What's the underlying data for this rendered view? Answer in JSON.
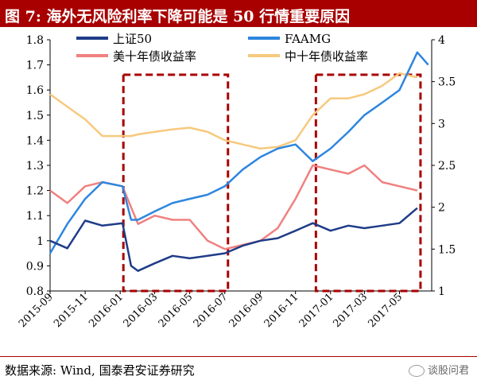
{
  "title": "图 7:  海外无风险利率下降可能是 50 行情重要原因",
  "source": "数据来源:  Wind, 国泰君安证券研究",
  "watermark": "谈股问君",
  "chart_data": {
    "type": "line",
    "x_start": "2015-09",
    "x_end": "2017-06",
    "x_ticks": [
      "2015-09",
      "2015-11",
      "2016-01",
      "2016-03",
      "2016-05",
      "2016-07",
      "2016-09",
      "2016-11",
      "2017-01",
      "2017-03",
      "2017-05"
    ],
    "y_left": {
      "lim": [
        0.8,
        1.8
      ],
      "ticks": [
        "0.8",
        "0.9",
        "1",
        "1.1",
        "1.2",
        "1.3",
        "1.4",
        "1.5",
        "1.6",
        "1.7",
        "1.8"
      ]
    },
    "y_right": {
      "lim": [
        1,
        4
      ],
      "ticks": [
        "1",
        "1.5",
        "2",
        "2.5",
        "3",
        "3.5",
        "4"
      ]
    },
    "legend_position": "top",
    "series": [
      {
        "name": "上证50",
        "axis": "left",
        "color": "#1f3c88",
        "points": [
          [
            "2015-09",
            1.0
          ],
          [
            "2015-10",
            0.97
          ],
          [
            "2015-11",
            1.08
          ],
          [
            "2015-12",
            1.06
          ],
          [
            "2016-01-05",
            1.07
          ],
          [
            "2016-01-20",
            0.9
          ],
          [
            "2016-02",
            0.88
          ],
          [
            "2016-03",
            0.91
          ],
          [
            "2016-04",
            0.94
          ],
          [
            "2016-05",
            0.93
          ],
          [
            "2016-06",
            0.94
          ],
          [
            "2016-07",
            0.95
          ],
          [
            "2016-08",
            0.98
          ],
          [
            "2016-09",
            1.0
          ],
          [
            "2016-10",
            1.01
          ],
          [
            "2016-11",
            1.04
          ],
          [
            "2016-12",
            1.07
          ],
          [
            "2017-01",
            1.04
          ],
          [
            "2017-02",
            1.06
          ],
          [
            "2017-03",
            1.05
          ],
          [
            "2017-04",
            1.06
          ],
          [
            "2017-05",
            1.07
          ],
          [
            "2017-06",
            1.13
          ]
        ]
      },
      {
        "name": "FAAMG",
        "axis": "right",
        "color": "#2e86de",
        "points": [
          [
            "2015-09",
            1.45
          ],
          [
            "2015-10",
            1.8
          ],
          [
            "2015-11",
            2.1
          ],
          [
            "2015-12",
            2.3
          ],
          [
            "2016-01-05",
            2.25
          ],
          [
            "2016-01-20",
            1.85
          ],
          [
            "2016-02",
            1.85
          ],
          [
            "2016-03",
            1.95
          ],
          [
            "2016-04",
            2.05
          ],
          [
            "2016-05",
            2.1
          ],
          [
            "2016-06",
            2.15
          ],
          [
            "2016-07",
            2.25
          ],
          [
            "2016-08",
            2.45
          ],
          [
            "2016-09",
            2.6
          ],
          [
            "2016-10",
            2.7
          ],
          [
            "2016-11",
            2.75
          ],
          [
            "2016-12",
            2.55
          ],
          [
            "2017-01",
            2.7
          ],
          [
            "2017-02",
            2.9
          ],
          [
            "2017-03",
            3.1
          ],
          [
            "2017-04",
            3.25
          ],
          [
            "2017-05",
            3.4
          ],
          [
            "2017-06",
            3.85
          ],
          [
            "2017-06-20",
            3.7
          ]
        ]
      },
      {
        "name": "美十年债收益率",
        "axis": "right",
        "color": "#f08080",
        "points": [
          [
            "2015-09",
            2.2
          ],
          [
            "2015-10",
            2.05
          ],
          [
            "2015-11",
            2.25
          ],
          [
            "2015-12",
            2.3
          ],
          [
            "2016-01-05",
            2.25
          ],
          [
            "2016-01-20",
            2.0
          ],
          [
            "2016-02",
            1.8
          ],
          [
            "2016-03",
            1.9
          ],
          [
            "2016-04",
            1.85
          ],
          [
            "2016-05",
            1.85
          ],
          [
            "2016-06",
            1.6
          ],
          [
            "2016-07",
            1.5
          ],
          [
            "2016-08",
            1.55
          ],
          [
            "2016-09",
            1.6
          ],
          [
            "2016-10",
            1.75
          ],
          [
            "2016-11",
            2.1
          ],
          [
            "2016-12",
            2.5
          ],
          [
            "2017-01",
            2.45
          ],
          [
            "2017-02",
            2.4
          ],
          [
            "2017-03",
            2.5
          ],
          [
            "2017-04",
            2.3
          ],
          [
            "2017-05",
            2.25
          ],
          [
            "2017-06",
            2.2
          ]
        ]
      },
      {
        "name": "中十年债收益率",
        "axis": "right",
        "color": "#f7c97d",
        "points": [
          [
            "2015-09",
            3.35
          ],
          [
            "2015-10",
            3.2
          ],
          [
            "2015-11",
            3.05
          ],
          [
            "2015-12",
            2.85
          ],
          [
            "2016-01-05",
            2.85
          ],
          [
            "2016-01-20",
            2.85
          ],
          [
            "2016-02",
            2.87
          ],
          [
            "2016-03",
            2.9
          ],
          [
            "2016-04",
            2.93
          ],
          [
            "2016-05",
            2.95
          ],
          [
            "2016-06",
            2.9
          ],
          [
            "2016-07",
            2.8
          ],
          [
            "2016-08",
            2.75
          ],
          [
            "2016-09",
            2.7
          ],
          [
            "2016-10",
            2.72
          ],
          [
            "2016-11",
            2.8
          ],
          [
            "2016-12",
            3.1
          ],
          [
            "2017-01",
            3.3
          ],
          [
            "2017-02",
            3.3
          ],
          [
            "2017-03",
            3.35
          ],
          [
            "2017-04",
            3.45
          ],
          [
            "2017-05",
            3.6
          ],
          [
            "2017-06",
            3.55
          ]
        ]
      }
    ],
    "highlight_boxes": [
      {
        "from": "2016-01",
        "to": "2016-07"
      },
      {
        "from": "2016-12",
        "to": "2017-06"
      }
    ]
  }
}
